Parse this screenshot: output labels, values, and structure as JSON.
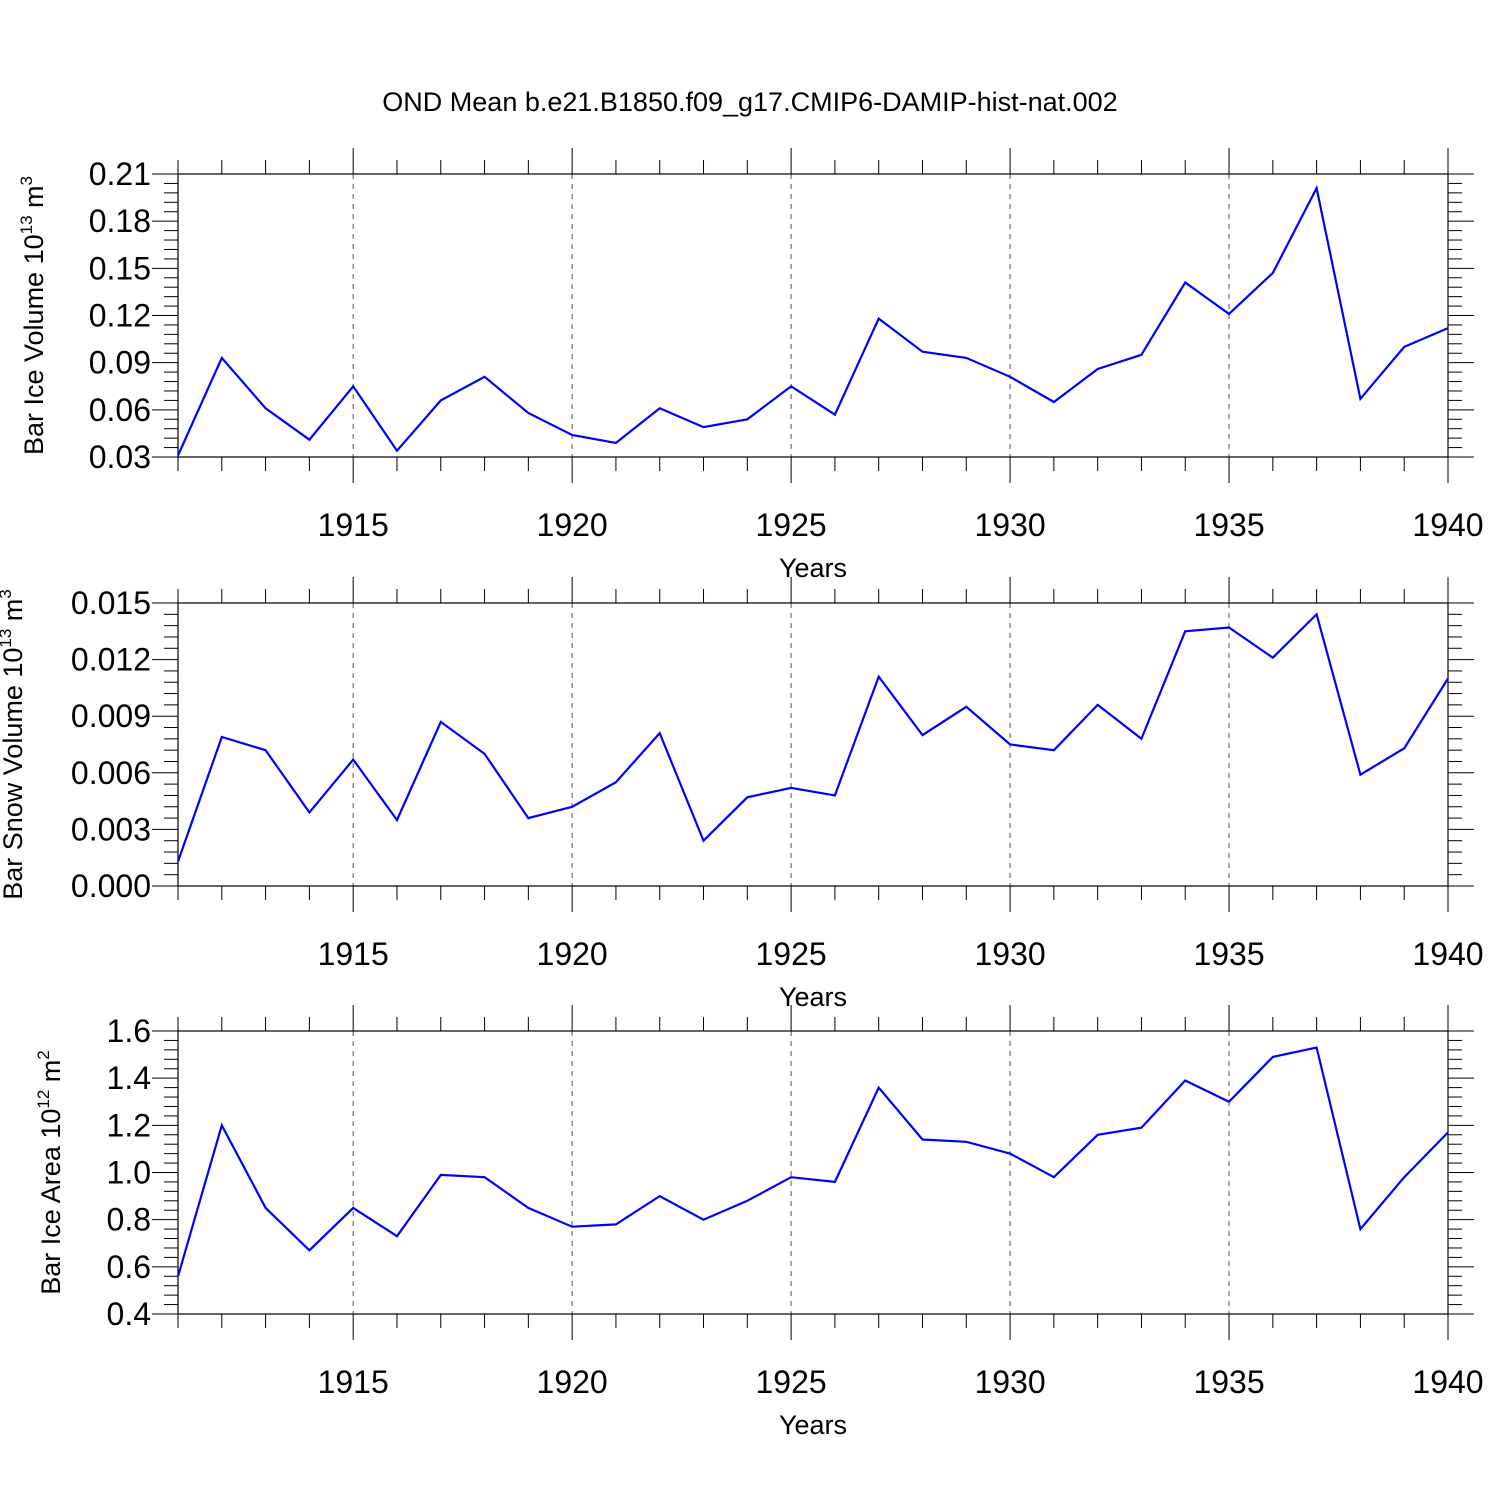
{
  "title": "OND Mean b.e21.B1850.f09_g17.CMIP6-DAMIP-hist-nat.002",
  "chart_data": [
    {
      "type": "line",
      "ylabel_main": "Bar Ice Volume 10",
      "ylabel_exp": "13",
      "ylabel_unit": " m",
      "ylabel_unit_exp": "3",
      "xlabel": "Years",
      "xlim": [
        1911,
        1940
      ],
      "ylim": [
        0.03,
        0.21
      ],
      "yticks": [
        "0.03",
        "0.06",
        "0.09",
        "0.12",
        "0.15",
        "0.18",
        "0.21"
      ],
      "xticks": [
        "1915",
        "1920",
        "1925",
        "1930",
        "1935",
        "1940"
      ],
      "series_color": "#0000ff",
      "x": [
        1911,
        1912,
        1913,
        1914,
        1915,
        1916,
        1917,
        1918,
        1919,
        1920,
        1921,
        1922,
        1923,
        1924,
        1925,
        1926,
        1927,
        1928,
        1929,
        1930,
        1931,
        1932,
        1933,
        1934,
        1935,
        1936,
        1937,
        1938,
        1939,
        1940
      ],
      "values": [
        0.031,
        0.093,
        0.061,
        0.041,
        0.075,
        0.034,
        0.066,
        0.081,
        0.058,
        0.044,
        0.039,
        0.061,
        0.049,
        0.054,
        0.075,
        0.057,
        0.118,
        0.097,
        0.093,
        0.081,
        0.065,
        0.086,
        0.095,
        0.141,
        0.121,
        0.147,
        0.201,
        0.067,
        0.1,
        0.112
      ]
    },
    {
      "type": "line",
      "ylabel_main": "Bar Snow Volume 10",
      "ylabel_exp": "13",
      "ylabel_unit": " m",
      "ylabel_unit_exp": "3",
      "xlabel": "Years",
      "xlim": [
        1911,
        1940
      ],
      "ylim": [
        0.0,
        0.015
      ],
      "yticks": [
        "0.000",
        "0.003",
        "0.006",
        "0.009",
        "0.012",
        "0.015"
      ],
      "xticks": [
        "1915",
        "1920",
        "1925",
        "1930",
        "1935",
        "1940"
      ],
      "series_color": "#0000ff",
      "x": [
        1911,
        1912,
        1913,
        1914,
        1915,
        1916,
        1917,
        1918,
        1919,
        1920,
        1921,
        1922,
        1923,
        1924,
        1925,
        1926,
        1927,
        1928,
        1929,
        1930,
        1931,
        1932,
        1933,
        1934,
        1935,
        1936,
        1937,
        1938,
        1939,
        1940
      ],
      "values": [
        0.0013,
        0.0079,
        0.0072,
        0.0039,
        0.0067,
        0.0035,
        0.0087,
        0.007,
        0.0036,
        0.0042,
        0.0055,
        0.0081,
        0.0024,
        0.0047,
        0.0052,
        0.0048,
        0.0111,
        0.008,
        0.0095,
        0.0075,
        0.0072,
        0.0096,
        0.0078,
        0.0135,
        0.0137,
        0.0121,
        0.0144,
        0.0059,
        0.0073,
        0.011
      ]
    },
    {
      "type": "line",
      "ylabel_main": "Bar Ice Area 10",
      "ylabel_exp": "12",
      "ylabel_unit": " m",
      "ylabel_unit_exp": "2",
      "xlabel": "Years",
      "xlim": [
        1911,
        1940
      ],
      "ylim": [
        0.4,
        1.6
      ],
      "yticks": [
        "0.4",
        "0.6",
        "0.8",
        "1.0",
        "1.2",
        "1.4",
        "1.6"
      ],
      "xticks": [
        "1915",
        "1920",
        "1925",
        "1930",
        "1935",
        "1940"
      ],
      "series_color": "#0000ff",
      "x": [
        1911,
        1912,
        1913,
        1914,
        1915,
        1916,
        1917,
        1918,
        1919,
        1920,
        1921,
        1922,
        1923,
        1924,
        1925,
        1926,
        1927,
        1928,
        1929,
        1930,
        1931,
        1932,
        1933,
        1934,
        1935,
        1936,
        1937,
        1938,
        1939,
        1940
      ],
      "values": [
        0.56,
        1.2,
        0.85,
        0.67,
        0.85,
        0.73,
        0.99,
        0.98,
        0.85,
        0.77,
        0.78,
        0.9,
        0.8,
        0.88,
        0.98,
        0.96,
        1.36,
        1.14,
        1.13,
        1.08,
        0.98,
        1.16,
        1.19,
        1.39,
        1.3,
        1.49,
        1.53,
        0.76,
        0.98,
        1.17
      ]
    }
  ]
}
